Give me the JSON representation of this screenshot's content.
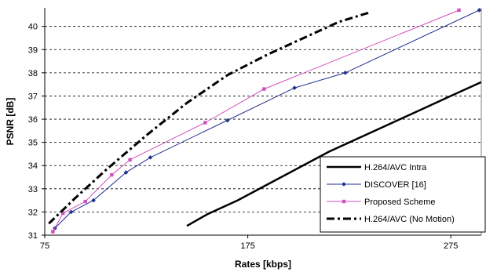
{
  "chart_data": {
    "type": "line",
    "xlabel": "Rates [kbps]",
    "ylabel": "PSNR [dB]",
    "xlim": [
      75,
      290
    ],
    "ylim": [
      31,
      40.8
    ],
    "x_ticks": [
      75,
      175,
      275
    ],
    "y_ticks": [
      31,
      32,
      33,
      34,
      35,
      36,
      37,
      38,
      39,
      40
    ],
    "grid": "horizontal dashed",
    "legend_position": "bottom-right",
    "series": [
      {
        "name": "H.264/AVC Intra",
        "color": "#000000",
        "style": "solid-thick",
        "marker": "none",
        "x": [
          145,
          155,
          170,
          185,
          200,
          215,
          230,
          245,
          260,
          275,
          290
        ],
        "y": [
          31.4,
          31.9,
          32.5,
          33.2,
          33.9,
          34.6,
          35.2,
          35.8,
          36.4,
          37.0,
          37.6
        ]
      },
      {
        "name": "DISCOVER [16]",
        "color": "#1f2f8f",
        "style": "solid",
        "marker": "diamond",
        "x": [
          80,
          88,
          99,
          115,
          127,
          165,
          198,
          223,
          289
        ],
        "y": [
          31.3,
          32.0,
          32.5,
          33.7,
          34.35,
          35.95,
          37.35,
          38.0,
          40.7
        ]
      },
      {
        "name": "Proposed Scheme",
        "color": "#d24fbd",
        "style": "solid",
        "marker": "square",
        "x": [
          79,
          84,
          95,
          108,
          117,
          154,
          183,
          279
        ],
        "y": [
          31.15,
          31.95,
          32.45,
          33.6,
          34.25,
          35.85,
          37.3,
          40.7
        ]
      },
      {
        "name": "H.264/AVC (No Motion)",
        "color": "#000000",
        "style": "dash-dot-thick",
        "marker": "none",
        "x": [
          77,
          90,
          105,
          125,
          145,
          165,
          185,
          205,
          220,
          235
        ],
        "y": [
          31.5,
          32.6,
          33.8,
          35.3,
          36.7,
          37.9,
          38.8,
          39.6,
          40.2,
          40.6
        ]
      }
    ]
  }
}
